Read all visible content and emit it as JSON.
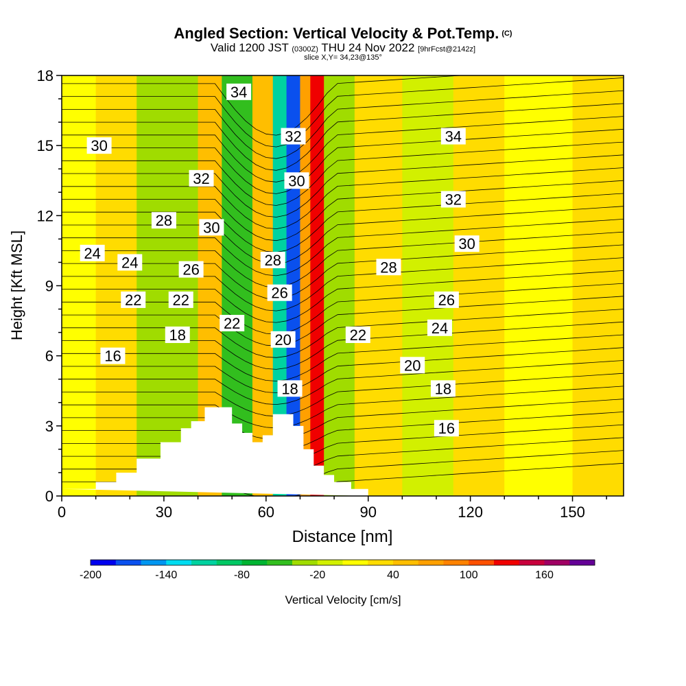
{
  "title": {
    "main": "Angled Section: Vertical Velocity & Pot.Temp.",
    "copyright": "(C)",
    "valid_prefix": "Valid 1200 JST",
    "valid_utc": "(0300Z)",
    "valid_date": "THU 24 Nov 2022",
    "forecast": "[9hrFcst@2142z]",
    "slice": "slice X,Y= 34,23@135°"
  },
  "chart_data": {
    "type": "heatmap",
    "xlabel": "Distance [nm]",
    "ylabel": "Height [Kft MSL]",
    "xlim": [
      0,
      165
    ],
    "ylim": [
      0,
      18
    ],
    "x_ticks": [
      "0",
      "30",
      "60",
      "90",
      "120",
      "150"
    ],
    "x_tick_values": [
      0,
      30,
      60,
      90,
      120,
      150
    ],
    "y_ticks": [
      "0",
      "3",
      "6",
      "9",
      "12",
      "15",
      "18"
    ],
    "y_tick_values": [
      0,
      3,
      6,
      9,
      12,
      15,
      18
    ],
    "colorbar": {
      "label": "Vertical Velocity [cm/s]",
      "tick_labels": [
        "-200",
        "-140",
        "-80",
        "-20",
        "40",
        "100",
        "160"
      ],
      "range": [
        -200,
        200
      ],
      "colors": [
        "#0000ee",
        "#0a50ee",
        "#0096f0",
        "#00dcf0",
        "#00d2a0",
        "#00c864",
        "#00b432",
        "#32be1e",
        "#a0dc00",
        "#d2f000",
        "#ffff00",
        "#ffdc00",
        "#ffbe00",
        "#ffa000",
        "#ff8200",
        "#ff5000",
        "#f00000",
        "#c8003c",
        "#a00064",
        "#640096"
      ]
    },
    "field_bands": [
      {
        "x": [
          0,
          10
        ],
        "value": 5
      },
      {
        "x": [
          10,
          22
        ],
        "value": 25
      },
      {
        "x": [
          22,
          40
        ],
        "value": -30
      },
      {
        "x": [
          40,
          47
        ],
        "value": 45
      },
      {
        "x": [
          47,
          56
        ],
        "value": -60
      },
      {
        "x": [
          56,
          62
        ],
        "value": 55
      },
      {
        "x": [
          62,
          66
        ],
        "value": -110
      },
      {
        "x": [
          66,
          70
        ],
        "value": -170
      },
      {
        "x": [
          70,
          73
        ],
        "value": 60
      },
      {
        "x": [
          73,
          77
        ],
        "value": 135
      },
      {
        "x": [
          77,
          86
        ],
        "value": -25
      },
      {
        "x": [
          86,
          100
        ],
        "value": 25
      },
      {
        "x": [
          100,
          115
        ],
        "value": -10
      },
      {
        "x": [
          115,
          130
        ],
        "value": 35
      },
      {
        "x": [
          130,
          150
        ],
        "value": 10
      },
      {
        "x": [
          150,
          165
        ],
        "value": 25
      }
    ],
    "isentrope_labels": [
      {
        "text": "34",
        "x": 52,
        "y": 17.3
      },
      {
        "text": "34",
        "x": 115,
        "y": 15.4
      },
      {
        "text": "32",
        "x": 68,
        "y": 15.4
      },
      {
        "text": "32",
        "x": 41,
        "y": 13.6
      },
      {
        "text": "32",
        "x": 115,
        "y": 12.7
      },
      {
        "text": "30",
        "x": 11,
        "y": 15.0
      },
      {
        "text": "30",
        "x": 69,
        "y": 13.5
      },
      {
        "text": "30",
        "x": 44,
        "y": 11.5
      },
      {
        "text": "30",
        "x": 119,
        "y": 10.8
      },
      {
        "text": "28",
        "x": 30,
        "y": 11.8
      },
      {
        "text": "28",
        "x": 62,
        "y": 10.1
      },
      {
        "text": "28",
        "x": 96,
        "y": 9.8
      },
      {
        "text": "26",
        "x": 38,
        "y": 9.7
      },
      {
        "text": "26",
        "x": 64,
        "y": 8.7
      },
      {
        "text": "26",
        "x": 113,
        "y": 8.4
      },
      {
        "text": "24",
        "x": 9,
        "y": 10.4
      },
      {
        "text": "24",
        "x": 20,
        "y": 10.0
      },
      {
        "text": "24",
        "x": 111,
        "y": 7.2
      },
      {
        "text": "22",
        "x": 21,
        "y": 8.4
      },
      {
        "text": "22",
        "x": 35,
        "y": 8.4
      },
      {
        "text": "22",
        "x": 50,
        "y": 7.4
      },
      {
        "text": "22",
        "x": 87,
        "y": 6.9
      },
      {
        "text": "20",
        "x": 65,
        "y": 6.7
      },
      {
        "text": "20",
        "x": 103,
        "y": 5.6
      },
      {
        "text": "18",
        "x": 34,
        "y": 6.9
      },
      {
        "text": "18",
        "x": 67,
        "y": 4.6
      },
      {
        "text": "18",
        "x": 112,
        "y": 4.6
      },
      {
        "text": "16",
        "x": 15,
        "y": 6.0
      },
      {
        "text": "16",
        "x": 113,
        "y": 2.9
      }
    ],
    "terrain": [
      [
        0,
        0.3
      ],
      [
        10,
        0.3
      ],
      [
        10,
        0.6
      ],
      [
        16,
        0.6
      ],
      [
        16,
        1.0
      ],
      [
        22,
        1.0
      ],
      [
        22,
        1.6
      ],
      [
        29,
        1.6
      ],
      [
        29,
        2.3
      ],
      [
        35,
        2.3
      ],
      [
        35,
        2.9
      ],
      [
        38,
        2.9
      ],
      [
        38,
        3.2
      ],
      [
        42,
        3.2
      ],
      [
        42,
        3.8
      ],
      [
        50,
        3.8
      ],
      [
        50,
        3.1
      ],
      [
        53,
        3.1
      ],
      [
        53,
        2.7
      ],
      [
        56,
        2.7
      ],
      [
        56,
        2.3
      ],
      [
        59,
        2.3
      ],
      [
        59,
        2.6
      ],
      [
        62,
        2.6
      ],
      [
        62,
        3.5
      ],
      [
        68,
        3.5
      ],
      [
        68,
        3.0
      ],
      [
        71,
        3.0
      ],
      [
        71,
        2.0
      ],
      [
        74,
        2.0
      ],
      [
        74,
        1.3
      ],
      [
        77,
        1.3
      ],
      [
        77,
        0.9
      ],
      [
        80,
        0.9
      ],
      [
        80,
        0.6
      ],
      [
        85,
        0.6
      ],
      [
        85,
        0.3
      ],
      [
        90,
        0.3
      ],
      [
        90,
        0
      ]
    ]
  }
}
